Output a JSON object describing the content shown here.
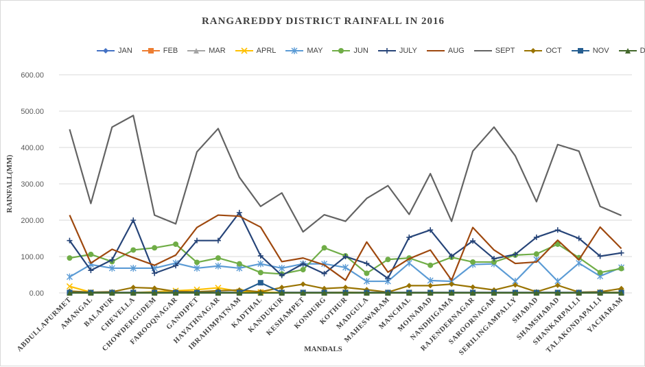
{
  "chart_data": {
    "type": "line",
    "title": "RANGAREDDY DISTRICT RAINFALL IN 2016",
    "xlabel": "MANDALS",
    "ylabel": "RAINFALL(MM)",
    "ylim": [
      0,
      600
    ],
    "yticks": [
      "0.00",
      "100.00",
      "200.00",
      "300.00",
      "400.00",
      "500.00",
      "600.00"
    ],
    "grid": true,
    "legend_position": "top",
    "categories": [
      "ABDULLAPURMET",
      "AMANGAL",
      "BALAPUR",
      "CHEVELLA",
      "CHOWDERGUDEM",
      "FAROOQNAGAR",
      "GANDIPET",
      "HAYATHNAGAR",
      "IBRAHIMPATNAM",
      "KADTHAL",
      "KANDUKUR",
      "KESHAMPET",
      "KONDURG",
      "KOTHUR",
      "MADGULA",
      "MAHESWARAM",
      "MANCHAL",
      "MOINABAD",
      "NANDHIGAMA",
      "RAJENDERNAGAR",
      "SAROORNAGAR",
      "SERILINGAMPALLY",
      "SHABAD",
      "SHAMSHABAD",
      "SHANKARPALLI",
      "TALAKONDAPALLI",
      "YACHARAM"
    ],
    "series": [
      {
        "name": "JAN",
        "color": "#4472C4",
        "marker": "diamond",
        "values": [
          2,
          1,
          1,
          1,
          1,
          1,
          1,
          1,
          1,
          1,
          1,
          1,
          1,
          1,
          1,
          1,
          1,
          1,
          1,
          1,
          1,
          1,
          1,
          1,
          1,
          1,
          1
        ]
      },
      {
        "name": "FEB",
        "color": "#ED7D31",
        "marker": "square",
        "values": [
          1,
          1,
          1,
          1,
          1,
          1,
          1,
          1,
          1,
          1,
          1,
          1,
          1,
          1,
          1,
          1,
          1,
          1,
          1,
          1,
          1,
          1,
          1,
          1,
          1,
          1,
          1
        ]
      },
      {
        "name": "MAR",
        "color": "#A5A5A5",
        "marker": "triangle",
        "values": [
          1,
          1,
          1,
          1,
          1,
          1,
          1,
          1,
          1,
          1,
          1,
          1,
          1,
          1,
          1,
          1,
          1,
          1,
          1,
          1,
          1,
          1,
          1,
          1,
          1,
          1,
          1
        ]
      },
      {
        "name": "APRL",
        "color": "#FFC000",
        "marker": "x",
        "values": [
          18,
          2,
          1,
          1,
          3,
          6,
          9,
          14,
          4,
          2,
          1,
          1,
          1,
          2,
          1,
          1,
          1,
          1,
          1,
          1,
          1,
          1,
          1,
          1,
          1,
          2,
          2
        ]
      },
      {
        "name": "MAY",
        "color": "#5B9BD5",
        "marker": "star",
        "values": [
          44,
          78,
          68,
          68,
          68,
          82,
          68,
          74,
          68,
          80,
          68,
          80,
          80,
          70,
          32,
          32,
          82,
          34,
          32,
          78,
          80,
          32,
          92,
          32,
          82,
          46,
          70
        ]
      },
      {
        "name": "JUN",
        "color": "#70AD47",
        "marker": "circle",
        "values": [
          96,
          106,
          86,
          118,
          124,
          134,
          84,
          96,
          80,
          56,
          52,
          64,
          124,
          102,
          54,
          92,
          96,
          76,
          98,
          85,
          85,
          104,
          107,
          134,
          97,
          56,
          67
        ]
      },
      {
        "name": "JULY",
        "color": "#264478",
        "marker": "plus",
        "values": [
          144,
          62,
          91,
          200,
          54,
          75,
          144,
          144,
          221,
          102,
          48,
          80,
          53,
          100,
          81,
          40,
          153,
          173,
          101,
          143,
          94,
          106,
          153,
          173,
          150,
          101,
          110
        ]
      },
      {
        "name": "AUG",
        "color": "#9E480E",
        "marker": "line",
        "values": [
          214,
          82,
          120,
          97,
          76,
          104,
          180,
          214,
          211,
          181,
          86,
          96,
          77,
          35,
          140,
          57,
          94,
          118,
          35,
          180,
          118,
          81,
          85,
          145,
          91,
          181,
          122
        ]
      },
      {
        "name": "SEPT",
        "color": "#636363",
        "marker": "line",
        "values": [
          450,
          246,
          456,
          488,
          214,
          190,
          388,
          452,
          318,
          238,
          275,
          168,
          215,
          197,
          260,
          295,
          216,
          328,
          197,
          390,
          456,
          377,
          251,
          408,
          390,
          238,
          213
        ]
      },
      {
        "name": "OCT",
        "color": "#997300",
        "marker": "diamond",
        "values": [
          5,
          2,
          3,
          15,
          13,
          4,
          3,
          6,
          8,
          3,
          15,
          24,
          12,
          15,
          9,
          2,
          20,
          20,
          24,
          16,
          8,
          22,
          3,
          21,
          2,
          3,
          12
        ]
      },
      {
        "name": "NOV",
        "color": "#255E91",
        "marker": "square",
        "values": [
          1,
          1,
          1,
          1,
          1,
          1,
          1,
          1,
          1,
          28,
          1,
          1,
          1,
          1,
          1,
          1,
          1,
          1,
          1,
          1,
          1,
          1,
          1,
          1,
          1,
          1,
          1
        ]
      },
      {
        "name": "DEC",
        "color": "#43682B",
        "marker": "triangle",
        "values": [
          0,
          0,
          0,
          0,
          0,
          0,
          0,
          0,
          0,
          0,
          0,
          0,
          0,
          0,
          0,
          0,
          0,
          0,
          0,
          0,
          0,
          0,
          0,
          0,
          0,
          0,
          0
        ]
      }
    ]
  }
}
